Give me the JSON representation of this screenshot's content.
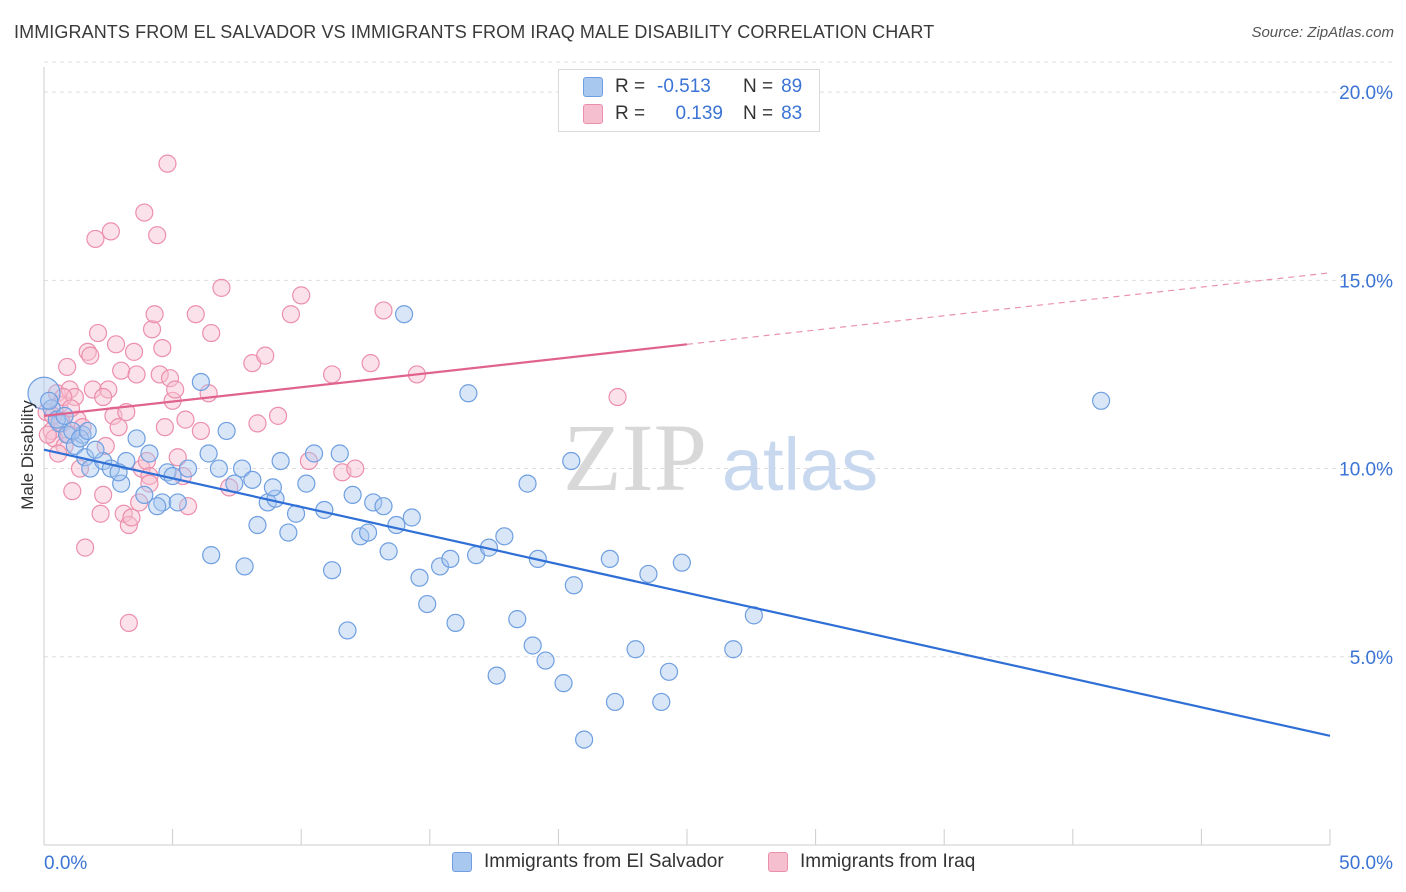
{
  "header": {
    "title": "IMMIGRANTS FROM EL SALVADOR VS IMMIGRANTS FROM IRAQ MALE DISABILITY CORRELATION CHART",
    "source": "Source: ZipAtlas.com"
  },
  "watermark": {
    "zip": "ZIP",
    "atlas": "atlas"
  },
  "legend": {
    "rows": [
      {
        "r_label": "R =",
        "r_value": "-0.513",
        "n_label": "N =",
        "n_value": "89"
      },
      {
        "r_label": "R =",
        "r_value": "0.139",
        "n_label": "N =",
        "n_value": "83"
      }
    ]
  },
  "chart_data": {
    "type": "scatter",
    "xlabel": "",
    "ylabel": "Male Disability",
    "xlim": [
      0,
      50
    ],
    "ylim": [
      0,
      20.8
    ],
    "x_tick_labels": [
      "0.0%",
      "50.0%"
    ],
    "y_ticks": [
      5,
      10,
      15,
      20
    ],
    "y_tick_labels": [
      "5.0%",
      "10.0%",
      "15.0%",
      "20.0%"
    ],
    "grid": true,
    "legend_position": "top-center",
    "colors": {
      "el_salvador_fill": "#a9c8f0",
      "el_salvador_stroke": "#6f9fe0",
      "el_salvador_line": "#2f6fd6",
      "iraq_fill": "#f6bfd0",
      "iraq_stroke": "#ec8fac",
      "iraq_line": "#e0638f",
      "accent_text": "#3b74d4"
    },
    "series": [
      {
        "name": "Immigrants from El Salvador",
        "r": -0.513,
        "n": 89,
        "trend": {
          "x": [
            0,
            50
          ],
          "y": [
            10.5,
            2.9
          ],
          "dashed_from": null
        },
        "points": [
          [
            0.0,
            12.0
          ],
          [
            0.3,
            11.6
          ],
          [
            0.6,
            11.2
          ],
          [
            0.9,
            10.9
          ],
          [
            1.2,
            10.6
          ],
          [
            1.5,
            10.9
          ],
          [
            1.6,
            10.3
          ],
          [
            1.8,
            10.0
          ],
          [
            2.3,
            10.2
          ],
          [
            2.6,
            10.0
          ],
          [
            3.0,
            9.6
          ],
          [
            3.6,
            10.8
          ],
          [
            3.9,
            9.3
          ],
          [
            4.1,
            10.4
          ],
          [
            4.6,
            9.1
          ],
          [
            4.8,
            9.9
          ],
          [
            5.2,
            9.1
          ],
          [
            5.6,
            10.0
          ],
          [
            6.1,
            12.3
          ],
          [
            6.4,
            10.4
          ],
          [
            6.5,
            7.7
          ],
          [
            6.8,
            10.0
          ],
          [
            7.1,
            11.0
          ],
          [
            7.4,
            9.6
          ],
          [
            7.7,
            10.0
          ],
          [
            7.8,
            7.4
          ],
          [
            8.1,
            9.7
          ],
          [
            8.3,
            8.5
          ],
          [
            8.7,
            9.1
          ],
          [
            9.0,
            9.2
          ],
          [
            9.2,
            10.2
          ],
          [
            9.5,
            8.3
          ],
          [
            9.8,
            8.8
          ],
          [
            10.2,
            9.6
          ],
          [
            10.5,
            10.4
          ],
          [
            10.9,
            8.9
          ],
          [
            11.2,
            7.3
          ],
          [
            11.5,
            10.4
          ],
          [
            11.8,
            5.7
          ],
          [
            12.3,
            8.2
          ],
          [
            12.6,
            8.3
          ],
          [
            12.8,
            9.1
          ],
          [
            13.2,
            9.0
          ],
          [
            13.4,
            7.8
          ],
          [
            13.7,
            8.5
          ],
          [
            14.0,
            14.1
          ],
          [
            14.3,
            8.7
          ],
          [
            14.6,
            7.1
          ],
          [
            14.9,
            6.4
          ],
          [
            15.4,
            7.4
          ],
          [
            15.8,
            7.6
          ],
          [
            16.0,
            5.9
          ],
          [
            16.5,
            12.0
          ],
          [
            16.8,
            7.7
          ],
          [
            17.3,
            7.9
          ],
          [
            17.6,
            4.5
          ],
          [
            17.9,
            8.2
          ],
          [
            18.4,
            6.0
          ],
          [
            18.8,
            9.6
          ],
          [
            19.0,
            5.3
          ],
          [
            19.2,
            7.6
          ],
          [
            19.5,
            4.9
          ],
          [
            20.2,
            4.3
          ],
          [
            20.5,
            10.2
          ],
          [
            20.6,
            6.9
          ],
          [
            21.0,
            2.8
          ],
          [
            22.0,
            7.6
          ],
          [
            22.2,
            3.8
          ],
          [
            23.0,
            5.2
          ],
          [
            23.5,
            7.2
          ],
          [
            24.0,
            3.8
          ],
          [
            24.3,
            4.6
          ],
          [
            24.8,
            7.5
          ],
          [
            26.8,
            5.2
          ],
          [
            27.6,
            6.1
          ],
          [
            41.1,
            11.8
          ],
          [
            0.5,
            11.3
          ],
          [
            1.1,
            11.0
          ],
          [
            2.0,
            10.5
          ],
          [
            0.8,
            11.4
          ],
          [
            1.4,
            10.8
          ],
          [
            3.2,
            10.2
          ],
          [
            4.4,
            9.0
          ],
          [
            5.0,
            9.8
          ],
          [
            2.9,
            9.9
          ],
          [
            0.2,
            11.8
          ],
          [
            1.7,
            11.0
          ],
          [
            12.0,
            9.3
          ],
          [
            8.9,
            9.5
          ]
        ]
      },
      {
        "name": "Immigrants from Iraq",
        "r": 0.139,
        "n": 83,
        "trend": {
          "x": [
            0,
            50
          ],
          "y": [
            11.4,
            15.2
          ],
          "dashed_from": 25
        },
        "points": [
          [
            0.1,
            11.5
          ],
          [
            0.3,
            11.0
          ],
          [
            0.4,
            10.8
          ],
          [
            0.5,
            12.0
          ],
          [
            0.6,
            11.7
          ],
          [
            0.7,
            11.2
          ],
          [
            0.8,
            10.6
          ],
          [
            0.9,
            12.7
          ],
          [
            1.0,
            12.1
          ],
          [
            1.1,
            9.4
          ],
          [
            1.2,
            11.9
          ],
          [
            1.3,
            11.3
          ],
          [
            1.4,
            10.0
          ],
          [
            1.5,
            11.1
          ],
          [
            1.6,
            7.9
          ],
          [
            1.7,
            13.1
          ],
          [
            1.8,
            13.0
          ],
          [
            1.9,
            12.1
          ],
          [
            2.0,
            16.1
          ],
          [
            2.1,
            13.6
          ],
          [
            2.2,
            8.8
          ],
          [
            2.3,
            9.3
          ],
          [
            2.4,
            10.6
          ],
          [
            2.5,
            12.1
          ],
          [
            2.6,
            16.3
          ],
          [
            2.7,
            11.4
          ],
          [
            2.8,
            13.3
          ],
          [
            2.9,
            11.1
          ],
          [
            3.0,
            12.6
          ],
          [
            3.1,
            8.8
          ],
          [
            3.2,
            11.5
          ],
          [
            3.3,
            8.5
          ],
          [
            3.4,
            8.7
          ],
          [
            3.5,
            13.1
          ],
          [
            3.6,
            12.5
          ],
          [
            3.7,
            9.1
          ],
          [
            3.8,
            10.0
          ],
          [
            3.9,
            16.8
          ],
          [
            4.0,
            10.2
          ],
          [
            4.1,
            9.8
          ],
          [
            4.2,
            13.7
          ],
          [
            4.3,
            14.1
          ],
          [
            4.4,
            16.2
          ],
          [
            4.5,
            12.5
          ],
          [
            4.6,
            13.2
          ],
          [
            4.7,
            11.1
          ],
          [
            4.8,
            18.1
          ],
          [
            4.9,
            12.4
          ],
          [
            5.0,
            11.8
          ],
          [
            5.1,
            12.1
          ],
          [
            5.2,
            10.3
          ],
          [
            5.4,
            9.8
          ],
          [
            5.6,
            9.0
          ],
          [
            5.9,
            14.1
          ],
          [
            6.1,
            11.0
          ],
          [
            6.5,
            13.6
          ],
          [
            6.9,
            14.8
          ],
          [
            7.2,
            9.5
          ],
          [
            8.1,
            12.8
          ],
          [
            8.3,
            11.2
          ],
          [
            8.6,
            13.0
          ],
          [
            9.1,
            11.4
          ],
          [
            9.6,
            14.1
          ],
          [
            10.0,
            14.6
          ],
          [
            10.3,
            10.2
          ],
          [
            11.2,
            12.5
          ],
          [
            11.6,
            9.9
          ],
          [
            12.1,
            10.0
          ],
          [
            12.7,
            12.8
          ],
          [
            13.2,
            14.2
          ],
          [
            22.3,
            11.9
          ],
          [
            14.5,
            12.5
          ],
          [
            0.15,
            10.9
          ],
          [
            0.35,
            11.4
          ],
          [
            0.55,
            10.4
          ],
          [
            0.75,
            11.9
          ],
          [
            0.95,
            10.9
          ],
          [
            1.05,
            11.6
          ],
          [
            2.3,
            11.9
          ],
          [
            3.3,
            5.9
          ],
          [
            4.1,
            9.6
          ],
          [
            5.5,
            11.3
          ],
          [
            6.4,
            12.0
          ]
        ]
      }
    ]
  },
  "bottom_legend": {
    "items": [
      {
        "label": "Immigrants from El Salvador"
      },
      {
        "label": "Immigrants from Iraq"
      }
    ]
  }
}
